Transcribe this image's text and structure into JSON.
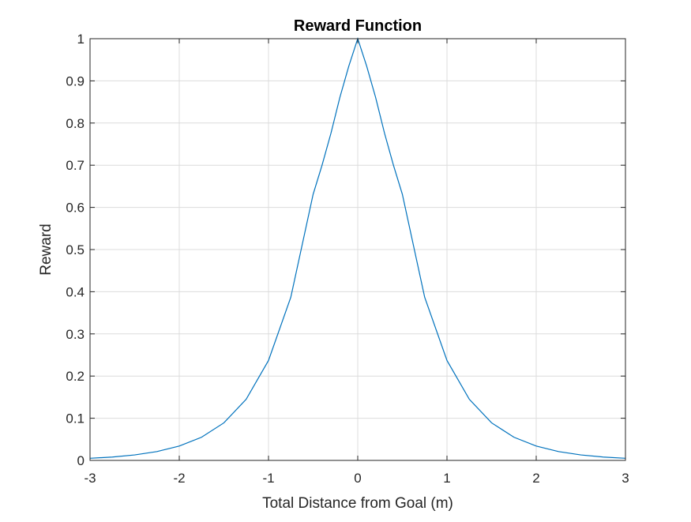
{
  "chart_data": {
    "type": "line",
    "title": "Reward Function",
    "xlabel": "Total Distance from Goal (m)",
    "ylabel": "Reward",
    "xlim": [
      -3,
      3
    ],
    "ylim": [
      0,
      1
    ],
    "x_ticks": [
      -3,
      -2,
      -1,
      0,
      1,
      2,
      3
    ],
    "y_ticks": [
      0,
      0.1,
      0.2,
      0.3,
      0.4,
      0.5,
      0.6,
      0.7,
      0.8,
      0.9,
      1
    ],
    "x_tick_labels": [
      "-3",
      "-2",
      "-1",
      "0",
      "1",
      "2",
      "3"
    ],
    "y_tick_labels": [
      "0",
      "0.1",
      "0.2",
      "0.3",
      "0.4",
      "0.5",
      "0.6",
      "0.7",
      "0.8",
      "0.9",
      "1"
    ],
    "grid": true,
    "series": [
      {
        "color": "#0072bd",
        "x": [
          -3,
          -2.75,
          -2.5,
          -2.25,
          -2,
          -1.75,
          -1.5,
          -1.25,
          -1,
          -0.75,
          -0.5,
          -0.4,
          -0.3,
          -0.2,
          -0.1,
          0,
          0.1,
          0.2,
          0.3,
          0.4,
          0.5,
          0.75,
          1,
          1.25,
          1.5,
          1.75,
          2,
          2.25,
          2.5,
          2.75,
          3
        ],
        "y": [
          0.005,
          0.008,
          0.013,
          0.021,
          0.034,
          0.055,
          0.089,
          0.145,
          0.237,
          0.387,
          0.631,
          0.7,
          0.776,
          0.861,
          0.935,
          1.0,
          0.935,
          0.861,
          0.776,
          0.7,
          0.631,
          0.387,
          0.237,
          0.145,
          0.089,
          0.055,
          0.034,
          0.021,
          0.013,
          0.008,
          0.005
        ]
      }
    ]
  }
}
